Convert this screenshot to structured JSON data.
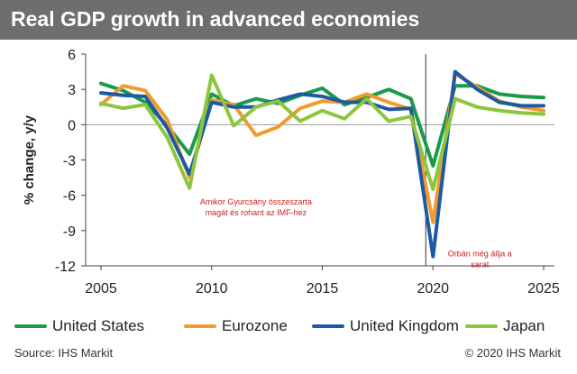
{
  "header": {
    "title": "Real GDP growth in advanced economies"
  },
  "chart_data": {
    "type": "line",
    "title": "Real GDP growth in advanced economies",
    "xlabel": "",
    "ylabel": "% change, y/y",
    "xlim": [
      2005,
      2025
    ],
    "ylim": [
      -12,
      6
    ],
    "x_ticks": [
      2005,
      2010,
      2015,
      2020,
      2025
    ],
    "y_ticks": [
      6,
      3,
      0,
      -3,
      -6,
      -9,
      -12
    ],
    "legend_position": "bottom",
    "grid": false,
    "series": [
      {
        "name": "United States",
        "color": "#1a9a4a",
        "x": [
          2005,
          2006,
          2007,
          2008,
          2009,
          2010,
          2011,
          2012,
          2013,
          2014,
          2015,
          2016,
          2017,
          2018,
          2019,
          2020,
          2021,
          2022,
          2023,
          2024,
          2025
        ],
        "values": [
          3.5,
          2.9,
          1.9,
          -0.1,
          -2.5,
          2.6,
          1.6,
          2.2,
          1.8,
          2.5,
          3.1,
          1.7,
          2.3,
          3.0,
          2.2,
          -3.5,
          3.3,
          3.3,
          2.6,
          2.4,
          2.3
        ]
      },
      {
        "name": "Eurozone",
        "color": "#f29a2e",
        "x": [
          2005,
          2006,
          2007,
          2008,
          2009,
          2010,
          2011,
          2012,
          2013,
          2014,
          2015,
          2016,
          2017,
          2018,
          2019,
          2020,
          2021,
          2022,
          2023,
          2024,
          2025
        ],
        "values": [
          1.7,
          3.3,
          2.9,
          0.4,
          -4.5,
          2.1,
          1.7,
          -0.9,
          -0.2,
          1.4,
          2.0,
          1.9,
          2.6,
          1.9,
          1.3,
          -8.3,
          4.3,
          3.2,
          2.0,
          1.5,
          1.2
        ]
      },
      {
        "name": "United Kingdom",
        "color": "#1d5aa3",
        "x": [
          2005,
          2006,
          2007,
          2008,
          2009,
          2010,
          2011,
          2012,
          2013,
          2014,
          2015,
          2016,
          2017,
          2018,
          2019,
          2020,
          2021,
          2022,
          2023,
          2024,
          2025
        ],
        "values": [
          2.7,
          2.5,
          2.4,
          -0.3,
          -4.2,
          1.9,
          1.5,
          1.5,
          2.1,
          2.6,
          2.4,
          1.9,
          1.9,
          1.3,
          1.4,
          -11.2,
          4.5,
          3.0,
          1.9,
          1.6,
          1.6
        ]
      },
      {
        "name": "Japan",
        "color": "#8cc63f",
        "x": [
          2005,
          2006,
          2007,
          2008,
          2009,
          2010,
          2011,
          2012,
          2013,
          2014,
          2015,
          2016,
          2017,
          2018,
          2019,
          2020,
          2021,
          2022,
          2023,
          2024,
          2025
        ],
        "values": [
          1.8,
          1.4,
          1.7,
          -1.1,
          -5.4,
          4.2,
          -0.1,
          1.5,
          2.0,
          0.3,
          1.2,
          0.5,
          2.2,
          0.3,
          0.7,
          -5.5,
          2.2,
          1.5,
          1.2,
          1.0,
          0.9
        ]
      }
    ],
    "annotations": [
      {
        "text": [
          "Amikor Gyurcsány összeszarta",
          "magát és rohant az IMF-hez"
        ],
        "x": 2012,
        "y": -6.8,
        "color": "#cc1f1f"
      },
      {
        "text": [
          "Orbán még állja a",
          "sarat"
        ],
        "x": 2022,
        "y": -11.2,
        "color": "#cc1f1f"
      }
    ]
  },
  "footer": {
    "source": "Source: IHS Markit",
    "copyright": "© 2020 IHS Markit"
  }
}
